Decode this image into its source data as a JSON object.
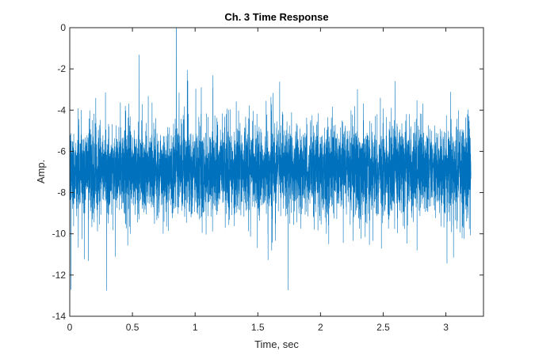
{
  "chart_data": {
    "type": "line",
    "title": "Ch. 3 Time Response",
    "xlabel": "Time, sec",
    "ylabel": "Amp.",
    "xlim": [
      0,
      3.3
    ],
    "ylim": [
      -14,
      0
    ],
    "xticks": [
      0,
      0.5,
      1,
      1.5,
      2,
      2.5,
      3
    ],
    "xtick_labels": [
      "0",
      "0.5",
      "1",
      "1.5",
      "2",
      "2.5",
      "3"
    ],
    "yticks": [
      0,
      -2,
      -4,
      -6,
      -8,
      -10,
      -12,
      -14
    ],
    "ytick_labels": [
      "0",
      "-2",
      "-4",
      "-6",
      "-8",
      "-10",
      "-12",
      "-14"
    ],
    "grid": false,
    "line_color": "#0072BD",
    "series": [
      {
        "x_start": 0,
        "x_end": 3.2,
        "approx_samples": 6000,
        "mean": -6.9,
        "core_range": [
          -8.5,
          -5.2
        ],
        "max": 0,
        "max_at_x": 0.85,
        "min": -12.7,
        "min_at_x": 0.01
      }
    ]
  }
}
